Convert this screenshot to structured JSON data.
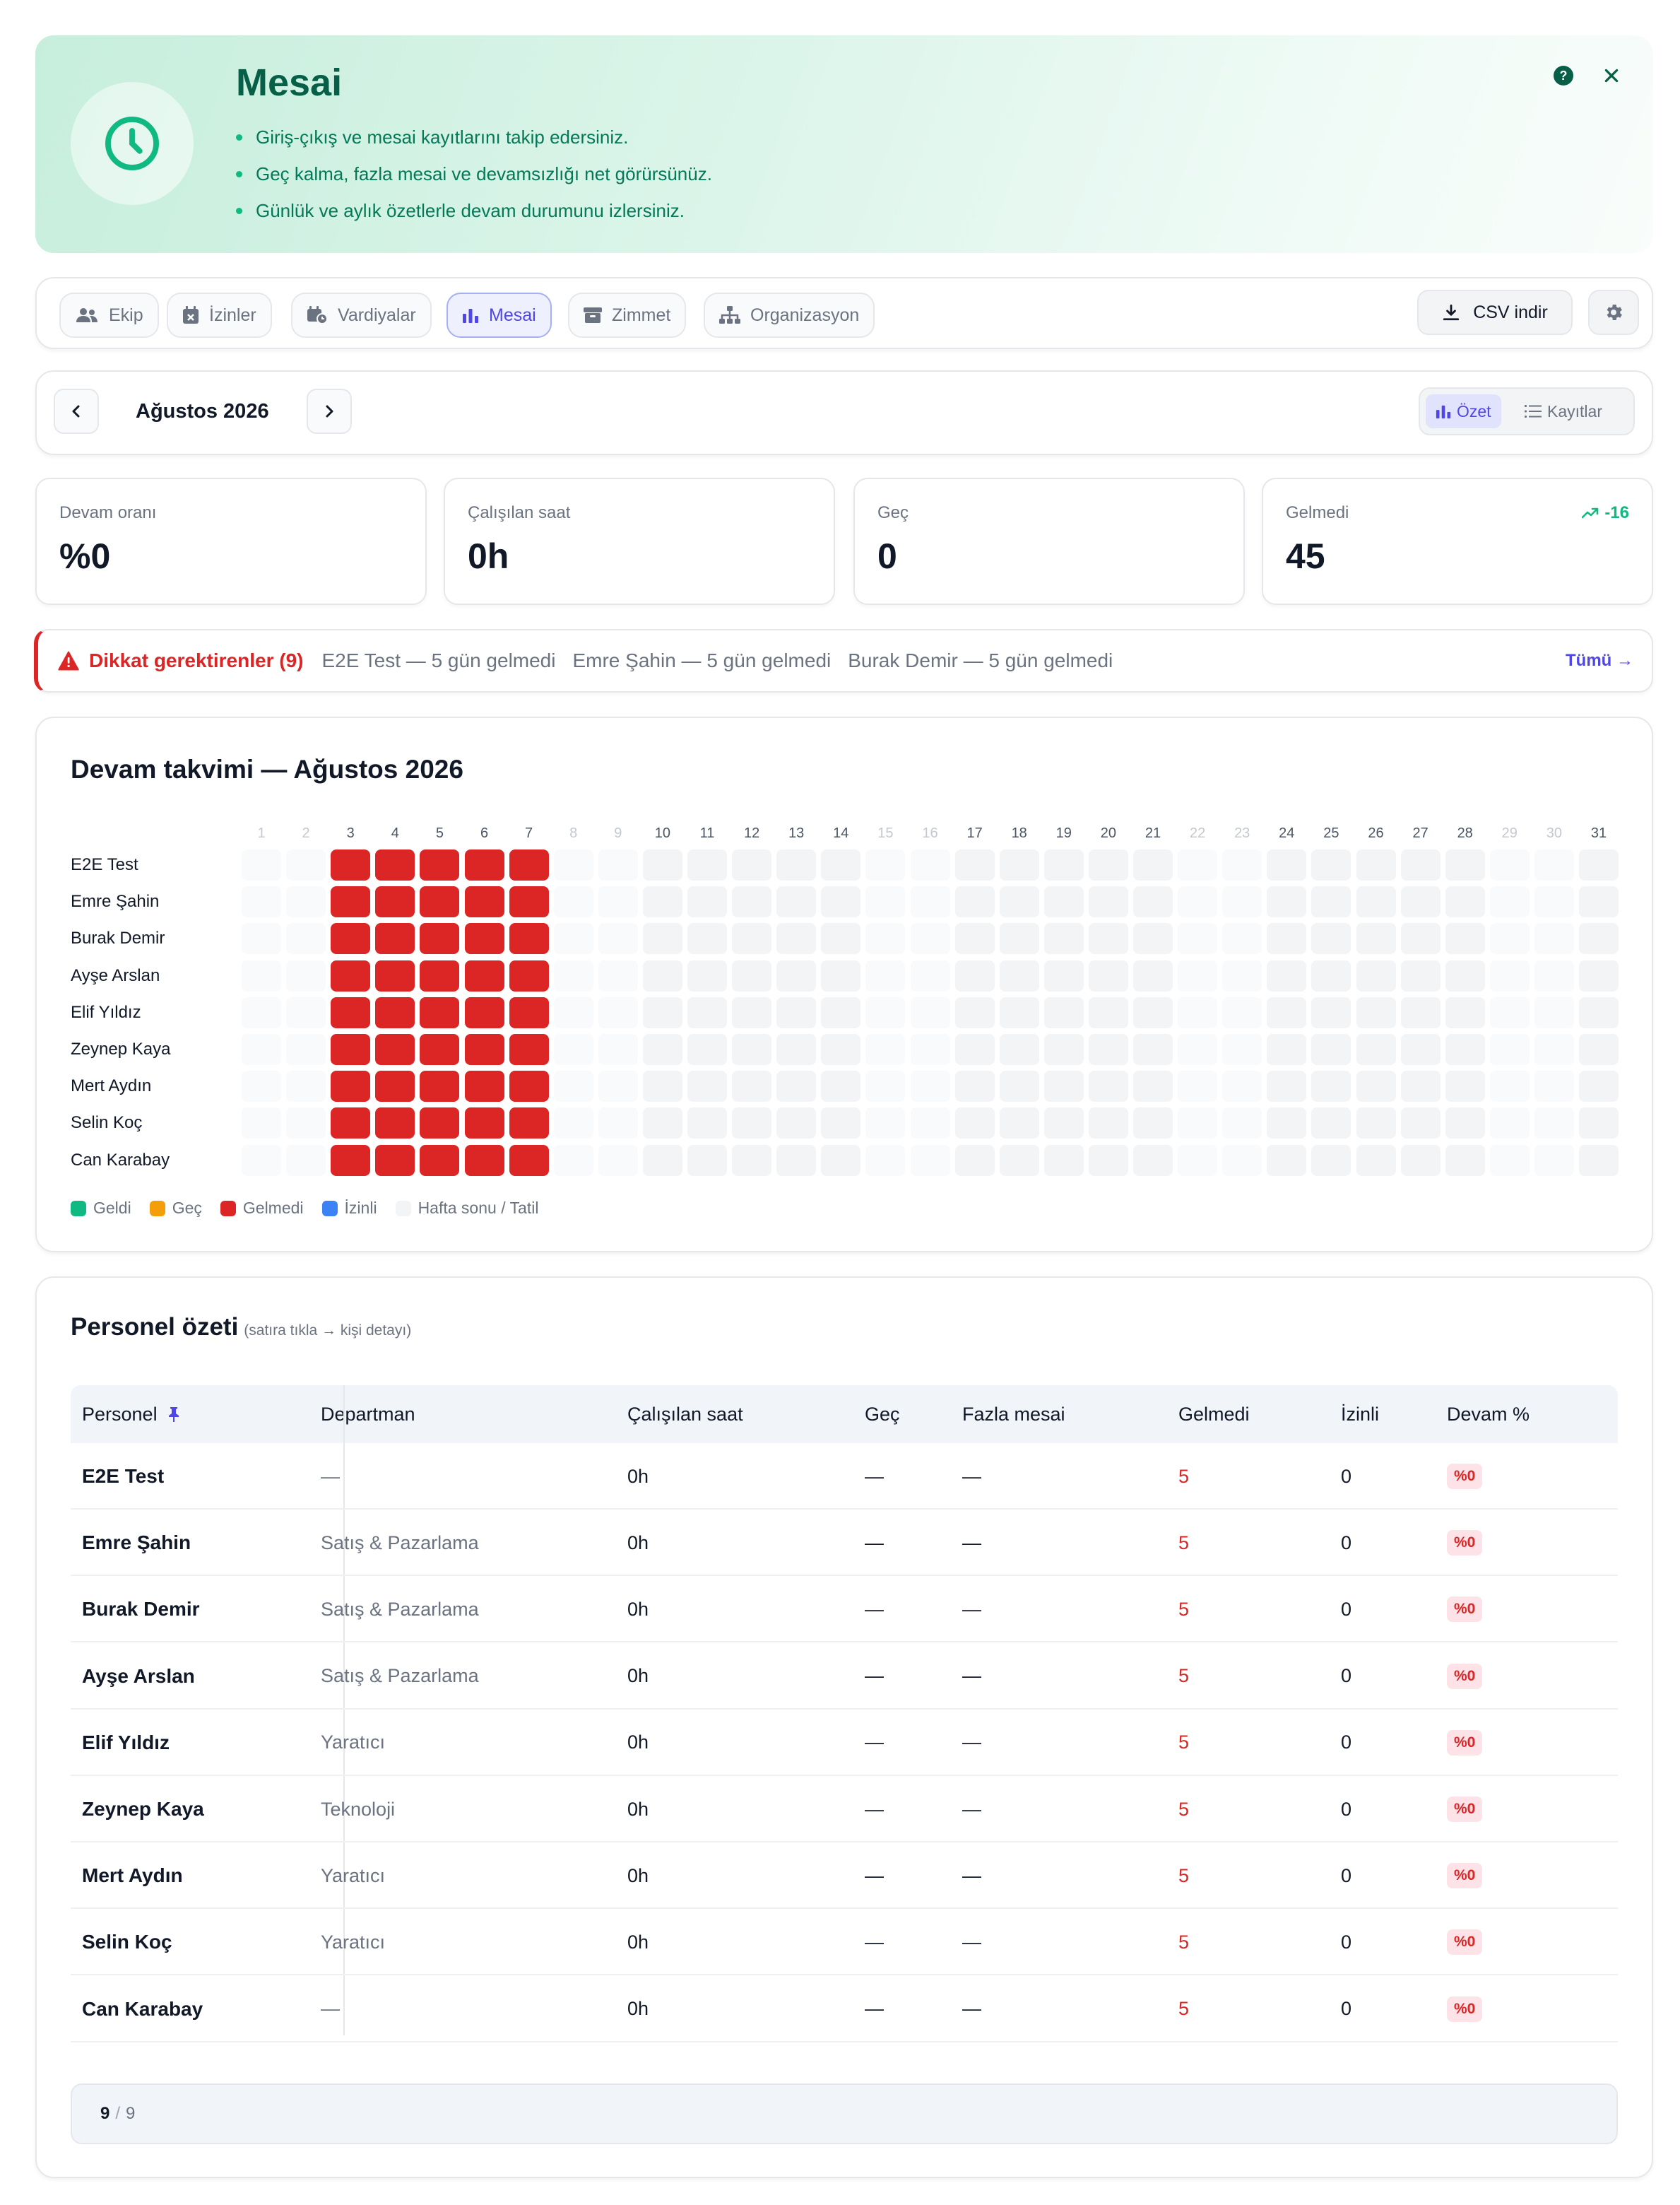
{
  "hero": {
    "title": "Mesai",
    "bullets": [
      "Giriş-çıkış ve mesai kayıtlarını takip edersiniz.",
      "Geç kalma, fazla mesai ve devamsızlığı net görürsünüz.",
      "Günlük ve aylık özetlerle devam durumunu izlersiniz."
    ],
    "help_symbol": "?",
    "icon": "clock-icon",
    "accent": "#10b981"
  },
  "tabs": [
    {
      "label": "Ekip",
      "icon": "users-icon"
    },
    {
      "label": "İzinler",
      "icon": "calendar-x-icon"
    },
    {
      "label": "Vardiyalar",
      "icon": "calendar-clock-icon"
    },
    {
      "label": "Mesai",
      "icon": "bar-chart-icon",
      "active": true
    },
    {
      "label": "Zimmet",
      "icon": "archive-icon"
    },
    {
      "label": "Organizasyon",
      "icon": "org-chart-icon"
    }
  ],
  "toolbar": {
    "csv_label": "CSV indir"
  },
  "month": {
    "label": "Ağustos 2026",
    "views": [
      {
        "label": "Özet",
        "active": true
      },
      {
        "label": "Kayıtlar"
      }
    ]
  },
  "stats": [
    {
      "label": "Devam oranı",
      "value": "%0"
    },
    {
      "label": "Çalışılan saat",
      "value": "0h"
    },
    {
      "label": "Geç",
      "value": "0"
    },
    {
      "label": "Gelmedi",
      "value": "45",
      "trend": "-16"
    }
  ],
  "alert": {
    "title": "Dikkat gerektirenler (9)",
    "items": [
      "E2E Test — 5 gün gelmedi",
      "Emre Şahin — 5 gün gelmedi",
      "Burak Demir — 5 gün gelmedi"
    ],
    "all_label": "Tümü →"
  },
  "calendar": {
    "title": "Devam takvimi — Ağustos 2026",
    "days": [
      1,
      2,
      3,
      4,
      5,
      6,
      7,
      8,
      9,
      10,
      11,
      12,
      13,
      14,
      15,
      16,
      17,
      18,
      19,
      20,
      21,
      22,
      23,
      24,
      25,
      26,
      27,
      28,
      29,
      30,
      31
    ],
    "weekend_days": [
      1,
      2,
      8,
      9,
      15,
      16,
      22,
      23,
      29,
      30
    ],
    "absent_days": [
      3,
      4,
      5,
      6,
      7
    ],
    "people": [
      "E2E Test",
      "Emre Şahin",
      "Burak Demir",
      "Ayşe Arslan",
      "Elif Yıldız",
      "Zeynep Kaya",
      "Mert Aydın",
      "Selin Koç",
      "Can Karabay"
    ],
    "legend": [
      {
        "label": "Geldi",
        "color": "#10b981"
      },
      {
        "label": "Geç",
        "color": "#f59e0b"
      },
      {
        "label": "Gelmedi",
        "color": "#dc2626"
      },
      {
        "label": "İzinli",
        "color": "#3b82f6"
      },
      {
        "label": "Hafta sonu / Tatil",
        "color": "#f3f4f6"
      }
    ]
  },
  "summary": {
    "title": "Personel özeti",
    "hint": "(satıra tıkla → kişi detayı)",
    "columns": [
      "Personel",
      "Departman",
      "Çalışılan saat",
      "Geç",
      "Fazla mesai",
      "Gelmedi",
      "İzinli",
      "Devam %"
    ],
    "rows": [
      {
        "name": "E2E Test",
        "dept": "—",
        "hours": "0h",
        "late": "—",
        "overtime": "—",
        "absent": "5",
        "leave": "0",
        "rate": "%0"
      },
      {
        "name": "Emre Şahin",
        "dept": "Satış & Pazarlama",
        "hours": "0h",
        "late": "—",
        "overtime": "—",
        "absent": "5",
        "leave": "0",
        "rate": "%0"
      },
      {
        "name": "Burak Demir",
        "dept": "Satış & Pazarlama",
        "hours": "0h",
        "late": "—",
        "overtime": "—",
        "absent": "5",
        "leave": "0",
        "rate": "%0"
      },
      {
        "name": "Ayşe Arslan",
        "dept": "Satış & Pazarlama",
        "hours": "0h",
        "late": "—",
        "overtime": "—",
        "absent": "5",
        "leave": "0",
        "rate": "%0"
      },
      {
        "name": "Elif Yıldız",
        "dept": "Yaratıcı",
        "hours": "0h",
        "late": "—",
        "overtime": "—",
        "absent": "5",
        "leave": "0",
        "rate": "%0"
      },
      {
        "name": "Zeynep Kaya",
        "dept": "Teknoloji",
        "hours": "0h",
        "late": "—",
        "overtime": "—",
        "absent": "5",
        "leave": "0",
        "rate": "%0"
      },
      {
        "name": "Mert Aydın",
        "dept": "Yaratıcı",
        "hours": "0h",
        "late": "—",
        "overtime": "—",
        "absent": "5",
        "leave": "0",
        "rate": "%0"
      },
      {
        "name": "Selin Koç",
        "dept": "Yaratıcı",
        "hours": "0h",
        "late": "—",
        "overtime": "—",
        "absent": "5",
        "leave": "0",
        "rate": "%0"
      },
      {
        "name": "Can Karabay",
        "dept": "—",
        "hours": "0h",
        "late": "—",
        "overtime": "—",
        "absent": "5",
        "leave": "0",
        "rate": "%0"
      }
    ],
    "pagination": {
      "shown": "9",
      "sep": "/",
      "total": "9"
    }
  }
}
